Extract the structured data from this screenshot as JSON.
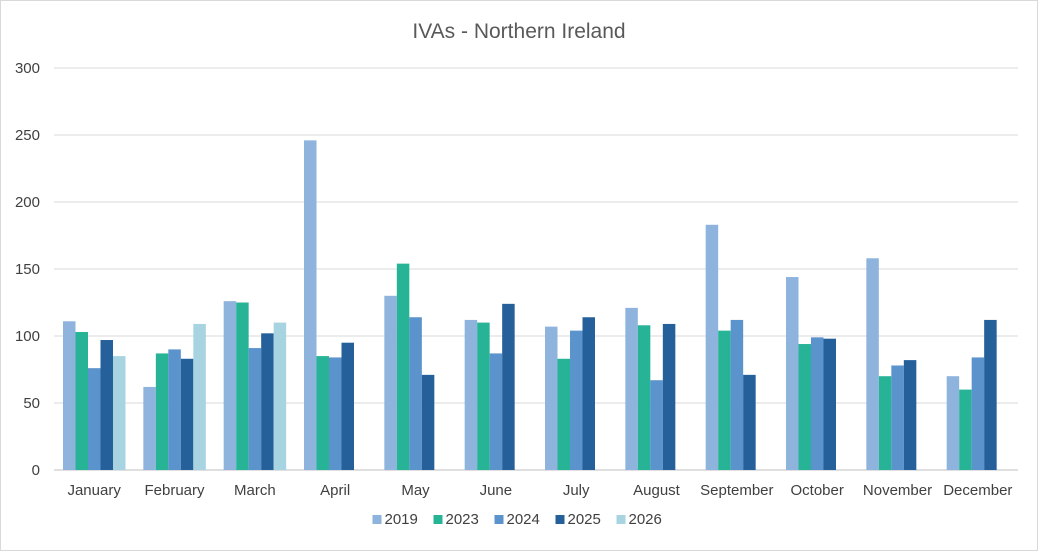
{
  "chart_data": {
    "type": "bar",
    "title": "IVAs - Northern Ireland",
    "xlabel": "",
    "ylabel": "",
    "ylim": [
      0,
      300
    ],
    "yticks": [
      0,
      50,
      100,
      150,
      200,
      250,
      300
    ],
    "grid": true,
    "legend_position": "bottom",
    "categories": [
      "January",
      "February",
      "March",
      "April",
      "May",
      "June",
      "July",
      "August",
      "September",
      "October",
      "November",
      "December"
    ],
    "series": [
      {
        "name": "2019",
        "color": "#8eb4de",
        "values": [
          111,
          62,
          126,
          246,
          130,
          112,
          107,
          121,
          183,
          144,
          158,
          70
        ]
      },
      {
        "name": "2023",
        "color": "#27b496",
        "values": [
          103,
          87,
          125,
          85,
          154,
          110,
          83,
          108,
          104,
          94,
          70,
          60
        ]
      },
      {
        "name": "2024",
        "color": "#5b93cd",
        "values": [
          76,
          90,
          91,
          84,
          114,
          87,
          104,
          67,
          112,
          99,
          78,
          84
        ]
      },
      {
        "name": "2025",
        "color": "#26609a",
        "values": [
          97,
          83,
          102,
          95,
          71,
          124,
          114,
          109,
          71,
          98,
          82,
          112
        ]
      },
      {
        "name": "2026",
        "color": "#a7d4e0",
        "values": [
          85,
          109,
          110,
          null,
          null,
          null,
          null,
          null,
          null,
          null,
          null,
          null
        ]
      }
    ]
  }
}
